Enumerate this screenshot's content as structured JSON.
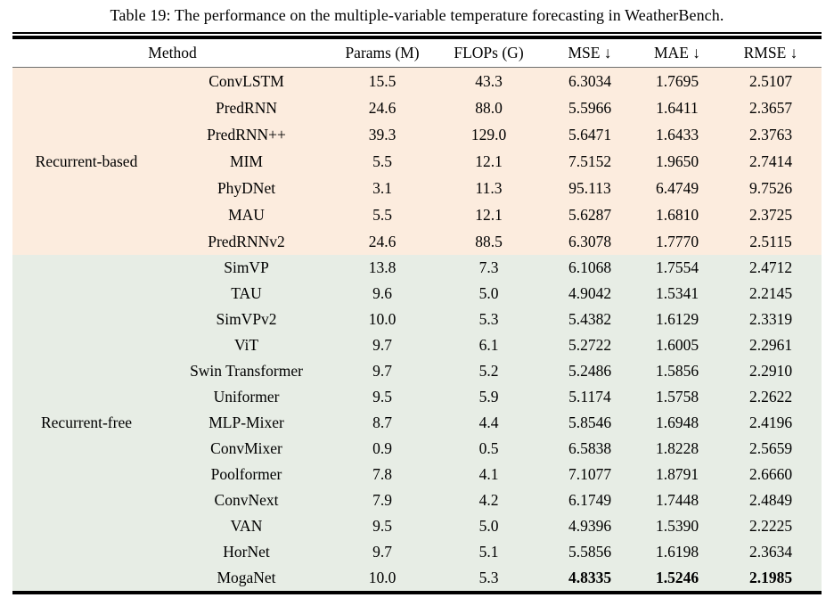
{
  "page": {
    "title": "Table 19: The performance on the multiple-variable temperature forecasting in WeatherBench."
  },
  "table": {
    "columns": {
      "method": "Method",
      "params": "Params (M)",
      "flops": "FLOPs (G)",
      "mse": "MSE ↓",
      "mae": "MAE ↓",
      "rmse": "RMSE ↓"
    },
    "colors": {
      "recurrent_based_bg": "#fcecde",
      "recurrent_free_bg": "#e7ede5",
      "rule": "#000000",
      "midrule": "#6e6e6e"
    },
    "groups": [
      {
        "label": "Recurrent-based",
        "rows": [
          {
            "method": "ConvLSTM",
            "params": "15.5",
            "flops": "43.3",
            "mse": "6.3034",
            "mae": "1.7695",
            "rmse": "2.5107"
          },
          {
            "method": "PredRNN",
            "params": "24.6",
            "flops": "88.0",
            "mse": "5.5966",
            "mae": "1.6411",
            "rmse": "2.3657"
          },
          {
            "method": "PredRNN++",
            "params": "39.3",
            "flops": "129.0",
            "mse": "5.6471",
            "mae": "1.6433",
            "rmse": "2.3763"
          },
          {
            "method": "MIM",
            "params": "5.5",
            "flops": "12.1",
            "mse": "7.5152",
            "mae": "1.9650",
            "rmse": "2.7414"
          },
          {
            "method": "PhyDNet",
            "params": "3.1",
            "flops": "11.3",
            "mse": "95.113",
            "mae": "6.4749",
            "rmse": "9.7526"
          },
          {
            "method": "MAU",
            "params": "5.5",
            "flops": "12.1",
            "mse": "5.6287",
            "mae": "1.6810",
            "rmse": "2.3725"
          },
          {
            "method": "PredRNNv2",
            "params": "24.6",
            "flops": "88.5",
            "mse": "6.3078",
            "mae": "1.7770",
            "rmse": "2.5115"
          }
        ]
      },
      {
        "label": "Recurrent-free",
        "rows": [
          {
            "method": "SimVP",
            "params": "13.8",
            "flops": "7.3",
            "mse": "6.1068",
            "mae": "1.7554",
            "rmse": "2.4712"
          },
          {
            "method": "TAU",
            "params": "9.6",
            "flops": "5.0",
            "mse": "4.9042",
            "mae": "1.5341",
            "rmse": "2.2145"
          },
          {
            "method": "SimVPv2",
            "params": "10.0",
            "flops": "5.3",
            "mse": "5.4382",
            "mae": "1.6129",
            "rmse": "2.3319"
          },
          {
            "method": "ViT",
            "params": "9.7",
            "flops": "6.1",
            "mse": "5.2722",
            "mae": "1.6005",
            "rmse": "2.2961"
          },
          {
            "method": "Swin Transformer",
            "params": "9.7",
            "flops": "5.2",
            "mse": "5.2486",
            "mae": "1.5856",
            "rmse": "2.2910"
          },
          {
            "method": "Uniformer",
            "params": "9.5",
            "flops": "5.9",
            "mse": "5.1174",
            "mae": "1.5758",
            "rmse": "2.2622"
          },
          {
            "method": "MLP-Mixer",
            "params": "8.7",
            "flops": "4.4",
            "mse": "5.8546",
            "mae": "1.6948",
            "rmse": "2.4196"
          },
          {
            "method": "ConvMixer",
            "params": "0.9",
            "flops": "0.5",
            "mse": "6.5838",
            "mae": "1.8228",
            "rmse": "2.5659"
          },
          {
            "method": "Poolformer",
            "params": "7.8",
            "flops": "4.1",
            "mse": "7.1077",
            "mae": "1.8791",
            "rmse": "2.6660"
          },
          {
            "method": "ConvNext",
            "params": "7.9",
            "flops": "4.2",
            "mse": "6.1749",
            "mae": "1.7448",
            "rmse": "2.4849"
          },
          {
            "method": "VAN",
            "params": "9.5",
            "flops": "5.0",
            "mse": "4.9396",
            "mae": "1.5390",
            "rmse": "2.2225"
          },
          {
            "method": "HorNet",
            "params": "9.7",
            "flops": "5.1",
            "mse": "5.5856",
            "mae": "1.6198",
            "rmse": "2.3634"
          },
          {
            "method": "MogaNet",
            "params": "10.0",
            "flops": "5.3",
            "mse": "4.8335",
            "mae": "1.5246",
            "rmse": "2.1985"
          }
        ]
      }
    ]
  }
}
